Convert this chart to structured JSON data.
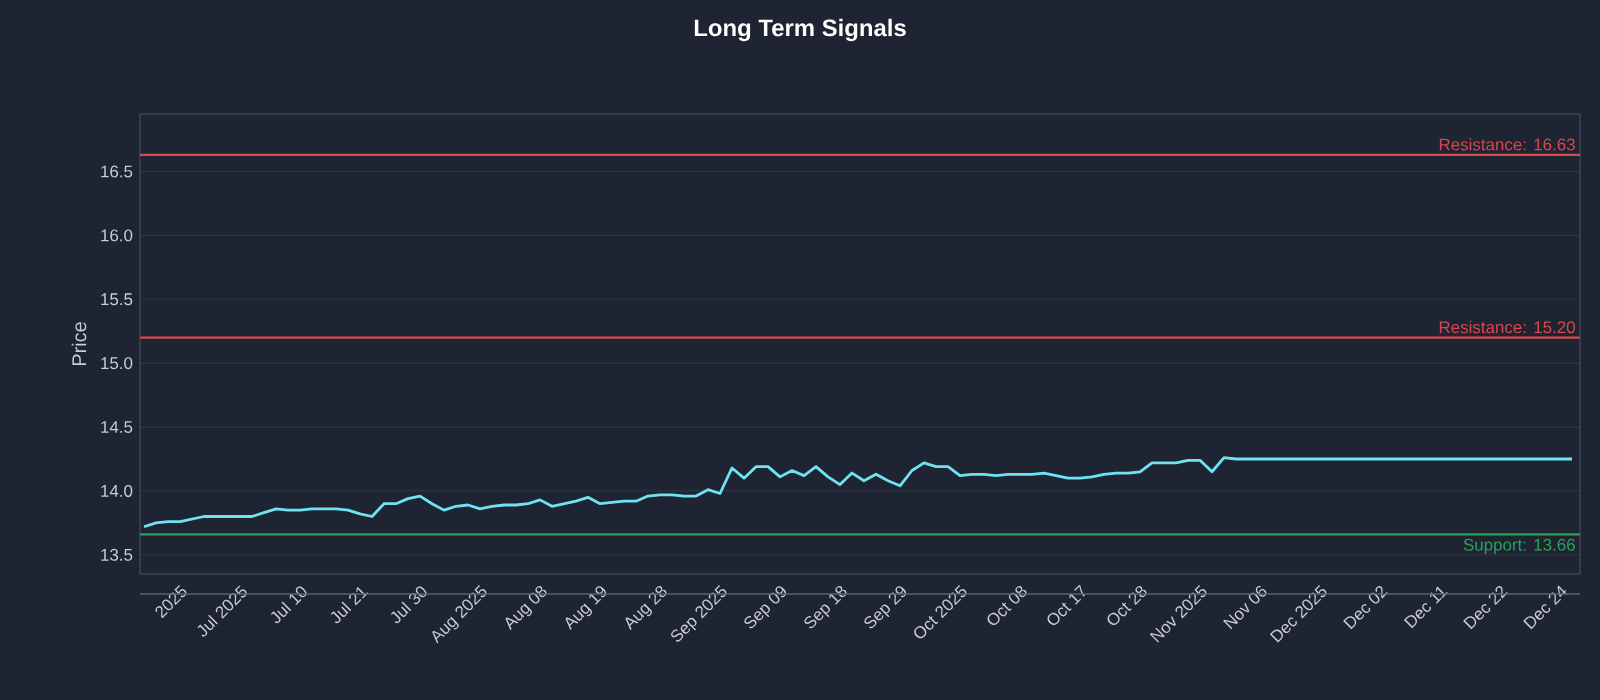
{
  "chart_data": {
    "type": "line",
    "title": "Long Term Signals",
    "ylabel": "Price",
    "categories": [
      null,
      null,
      null,
      "2025",
      null,
      null,
      null,
      null,
      "Jul 2025",
      null,
      null,
      null,
      null,
      "Jul 10",
      null,
      null,
      null,
      null,
      "Jul 21",
      null,
      null,
      null,
      null,
      "Jul 30",
      null,
      null,
      null,
      null,
      "Aug 2025",
      null,
      null,
      null,
      null,
      "Aug 08",
      null,
      null,
      null,
      null,
      "Aug 19",
      null,
      null,
      null,
      null,
      "Aug 28",
      null,
      null,
      null,
      null,
      "Sep 2025",
      null,
      null,
      null,
      null,
      "Sep 09",
      null,
      null,
      null,
      null,
      "Sep 18",
      null,
      null,
      null,
      null,
      "Sep 29",
      null,
      null,
      null,
      null,
      "Oct 2025",
      null,
      null,
      null,
      null,
      "Oct 08",
      null,
      null,
      null,
      null,
      "Oct 17",
      null,
      null,
      null,
      null,
      "Oct 28",
      null,
      null,
      null,
      null,
      "Nov 2025",
      null,
      null,
      null,
      null,
      "Nov 06",
      null,
      null,
      null,
      null,
      "Dec 2025",
      null,
      null,
      null,
      null,
      "Dec 02",
      null,
      null,
      null,
      null,
      "Dec 11",
      null,
      null,
      null,
      null,
      "Dec 22",
      null,
      null,
      null,
      null,
      "Dec 24",
      null
    ],
    "values": [
      13.72,
      13.75,
      13.76,
      13.76,
      13.78,
      13.8,
      13.8,
      13.8,
      13.8,
      13.8,
      13.83,
      13.86,
      13.85,
      13.85,
      13.86,
      13.86,
      13.86,
      13.85,
      13.82,
      13.8,
      13.9,
      13.9,
      13.94,
      13.96,
      13.9,
      13.85,
      13.88,
      13.89,
      13.86,
      13.88,
      13.89,
      13.89,
      13.9,
      13.93,
      13.88,
      13.9,
      13.92,
      13.95,
      13.9,
      13.91,
      13.92,
      13.92,
      13.96,
      13.97,
      13.97,
      13.96,
      13.96,
      14.01,
      13.98,
      14.18,
      14.1,
      14.19,
      14.19,
      14.11,
      14.16,
      14.12,
      14.19,
      14.11,
      14.05,
      14.14,
      14.08,
      14.13,
      14.08,
      14.04,
      14.16,
      14.22,
      14.19,
      14.19,
      14.12,
      14.13,
      14.13,
      14.12,
      14.13,
      14.13,
      14.13,
      14.14,
      14.12,
      14.1,
      14.1,
      14.11,
      14.13,
      14.14,
      14.14,
      14.15,
      14.22,
      14.22,
      14.22,
      14.24,
      14.24,
      14.15,
      14.26,
      14.25,
      14.25,
      14.25,
      14.25,
      14.25,
      14.25,
      14.25,
      14.25,
      14.25,
      14.25,
      14.25,
      14.25,
      14.25,
      14.25,
      14.25,
      14.25,
      14.25,
      14.25,
      14.25,
      14.25,
      14.25,
      14.25,
      14.25,
      14.25,
      14.25,
      14.25,
      14.25,
      14.25,
      14.25
    ],
    "color": "#6fe3f2",
    "ylim": [
      13.35,
      16.95
    ],
    "yticks": [
      13.5,
      {
        "value": 14,
        "label": "14.0"
      },
      14.5,
      {
        "value": 15,
        "label": "15.0"
      },
      15.5,
      {
        "value": 16,
        "label": "16.0"
      },
      16.5
    ],
    "grid": "y",
    "ref_lines": [
      {
        "axis": "y",
        "value": 16.63,
        "label": "Resistance: 16.63",
        "color": "#d9474f"
      },
      {
        "axis": "y",
        "value": 15.2,
        "label": "Resistance: 15.20",
        "color": "#d9474f"
      },
      {
        "axis": "y",
        "value": 13.66,
        "label": "Support: 13.66",
        "color": "#27a556"
      }
    ]
  }
}
